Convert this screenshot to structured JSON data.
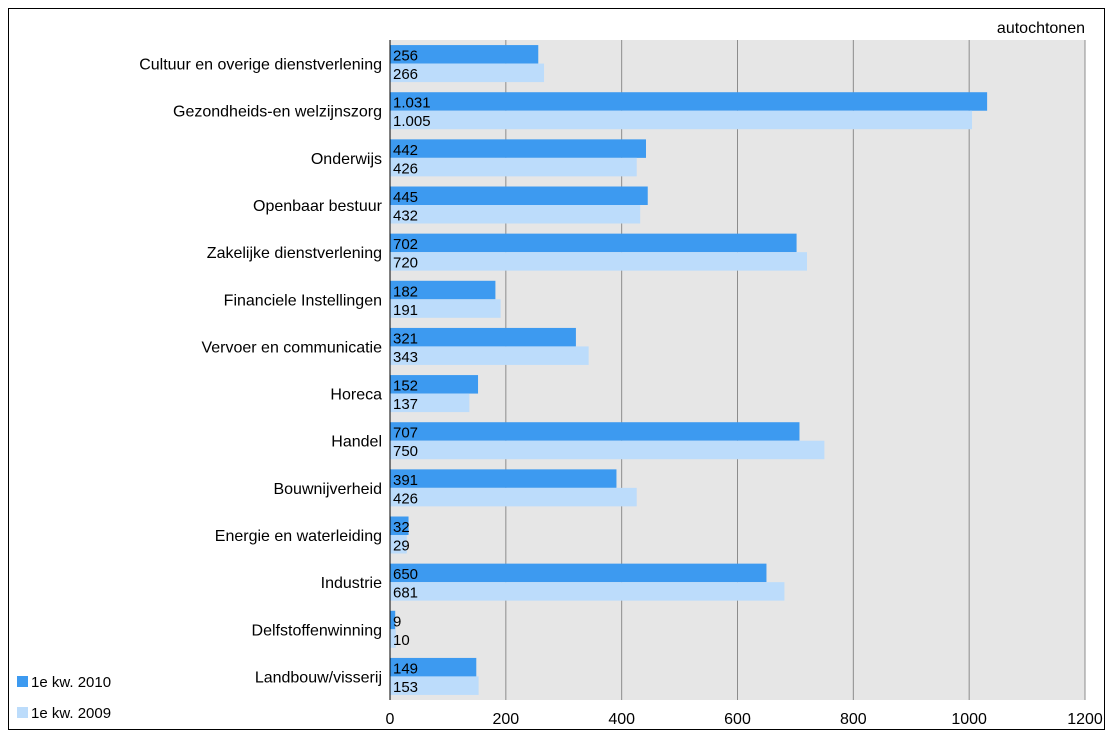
{
  "colors": {
    "series_2010": "#3d9af0",
    "series_2009": "#bcdcfb",
    "plot_background": "#e6e6e6",
    "gridline": "#8c8c8c"
  },
  "chart_data": {
    "type": "bar",
    "orientation": "horizontal",
    "title": "autochtonen",
    "title_placement": "top-right",
    "xlabel": "",
    "ylabel": "",
    "xlim": [
      0,
      1200
    ],
    "xticks": [
      0,
      200,
      400,
      600,
      800,
      1000,
      1200
    ],
    "grid": true,
    "legend_placement": "bottom-left",
    "categories": [
      "Cultuur en overige dienstverlening",
      "Gezondheids-en welzijnszorg",
      "Onderwijs",
      "Openbaar bestuur",
      "Zakelijke dienstverlening",
      "Financiele Instellingen",
      "Vervoer en communicatie",
      "Horeca",
      "Handel",
      "Bouwnijverheid",
      "Energie en waterleiding",
      "Industrie",
      "Delfstoffenwinning",
      "Landbouw/visserij"
    ],
    "series": [
      {
        "name": "1e kw. 2010",
        "color": "#3d9af0",
        "values": [
          256,
          1031,
          442,
          445,
          702,
          182,
          321,
          152,
          707,
          391,
          32,
          650,
          9,
          149
        ],
        "labels": [
          "256",
          "1.031",
          "442",
          "445",
          "702",
          "182",
          "321",
          "152",
          "707",
          "391",
          "32",
          "650",
          "9",
          "149"
        ]
      },
      {
        "name": "1e kw. 2009",
        "color": "#bcdcfb",
        "values": [
          266,
          1005,
          426,
          432,
          720,
          191,
          343,
          137,
          750,
          426,
          29,
          681,
          10,
          153
        ],
        "labels": [
          "266",
          "1.005",
          "426",
          "432",
          "720",
          "191",
          "343",
          "137",
          "750",
          "426",
          "29",
          "681",
          "10",
          "153"
        ]
      }
    ]
  }
}
